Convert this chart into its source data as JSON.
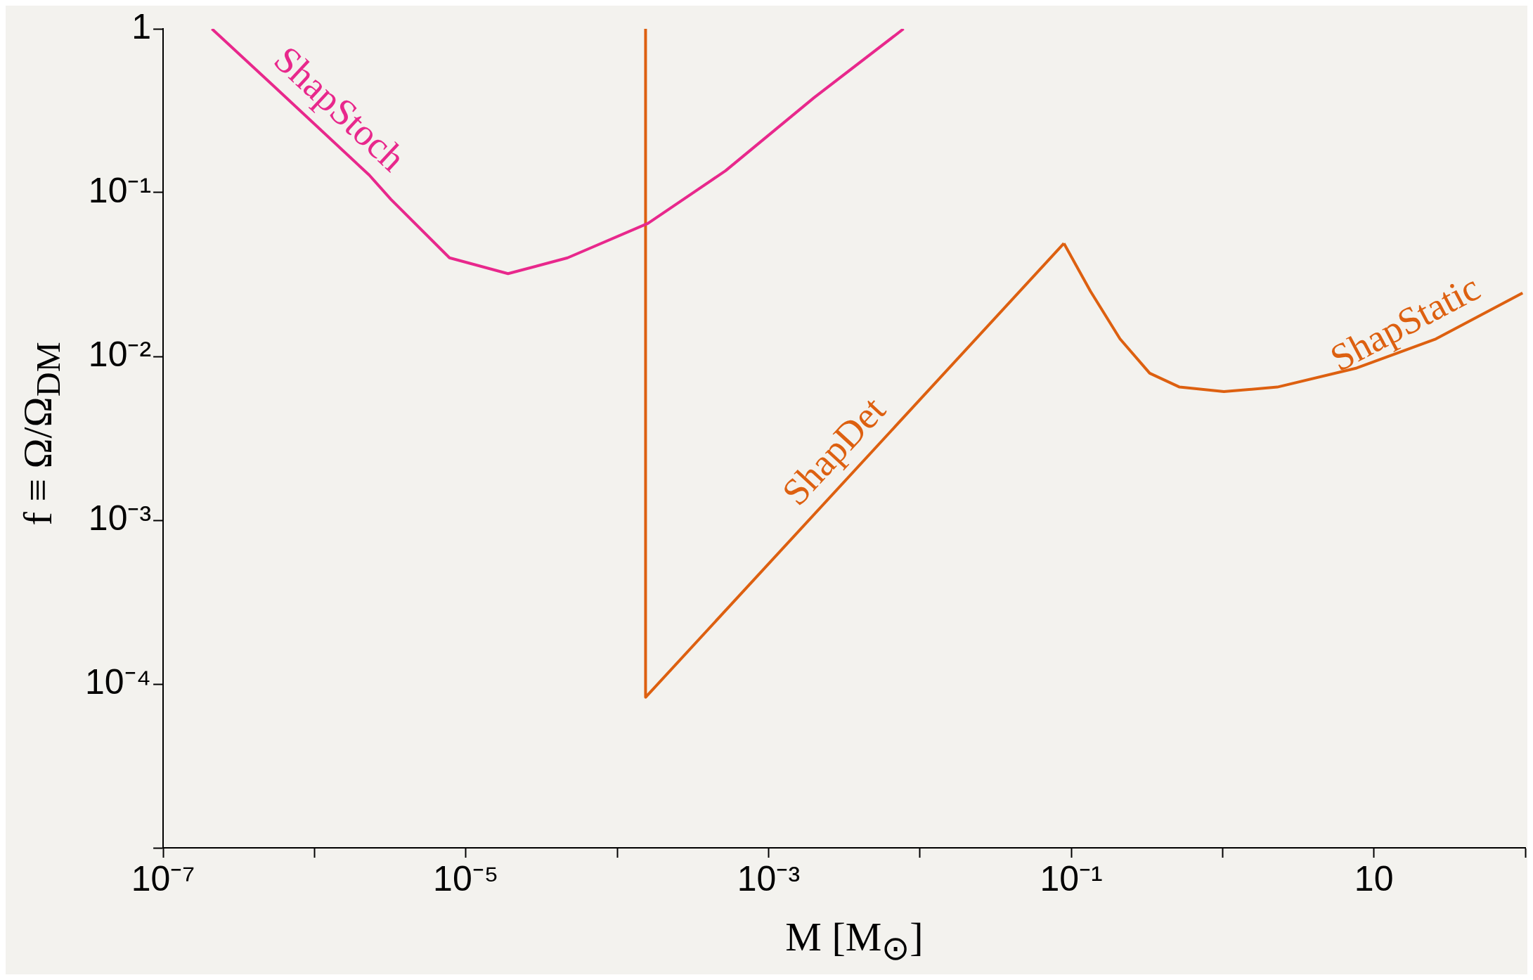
{
  "chart_data": {
    "type": "line",
    "xlabel": "M [M$_{⊙}$]",
    "ylabel": "f ≡ Ω/Ω$_{DM}$",
    "log": "xy",
    "grid": false,
    "legend": false,
    "marker": "none",
    "line_style": "solid",
    "xlim": [
      1e-07,
      100
    ],
    "ylim": [
      1e-05,
      1
    ],
    "xticks": [
      {
        "value": 1e-07,
        "label": "10⁻⁷"
      },
      {
        "value": 1e-06,
        "label": null
      },
      {
        "value": 1e-05,
        "label": "10⁻⁵"
      },
      {
        "value": 0.0001,
        "label": null
      },
      {
        "value": 0.001,
        "label": "10⁻³"
      },
      {
        "value": 0.01,
        "label": null
      },
      {
        "value": 0.1,
        "label": "10⁻¹"
      },
      {
        "value": 1,
        "label": null
      },
      {
        "value": 10,
        "label": "10"
      },
      {
        "value": 100,
        "label": null
      }
    ],
    "yticks": [
      {
        "value": 1e-05,
        "label": null
      },
      {
        "value": 0.0001,
        "label": "10⁻⁴"
      },
      {
        "value": 0.001,
        "label": "10⁻³"
      },
      {
        "value": 0.01,
        "label": "10⁻²"
      },
      {
        "value": 0.1,
        "label": "10⁻¹"
      },
      1
    ],
    "series": [
      {
        "name": "ShapStoch",
        "color": "#e8288c",
        "x": [
          2.1e-07,
          5.2e-07,
          2.3e-06,
          3.2e-06,
          7.8e-06,
          1.9e-05,
          4.7e-05,
          0.00016,
          0.00052,
          0.002,
          0.0078
        ],
        "values": [
          1,
          0.46,
          0.128,
          0.091,
          0.04,
          0.032,
          0.04,
          0.065,
          0.136,
          0.38,
          1
        ]
      },
      {
        "name": "ShapDet",
        "color": "#dd6010",
        "x": [
          0.000154,
          0.000154,
          0.0895
        ],
        "values": [
          1,
          8.3e-05,
          0.049
        ]
      },
      {
        "name": "ShapStatic",
        "color": "#dd6010",
        "x": [
          0.0895,
          0.134,
          0.21,
          0.33,
          0.52,
          1.02,
          2.3,
          7.7,
          25.7,
          96
        ],
        "values": [
          0.049,
          0.025,
          0.0128,
          0.0079,
          0.0065,
          0.0061,
          0.0065,
          0.0085,
          0.0128,
          0.0244
        ]
      }
    ]
  }
}
